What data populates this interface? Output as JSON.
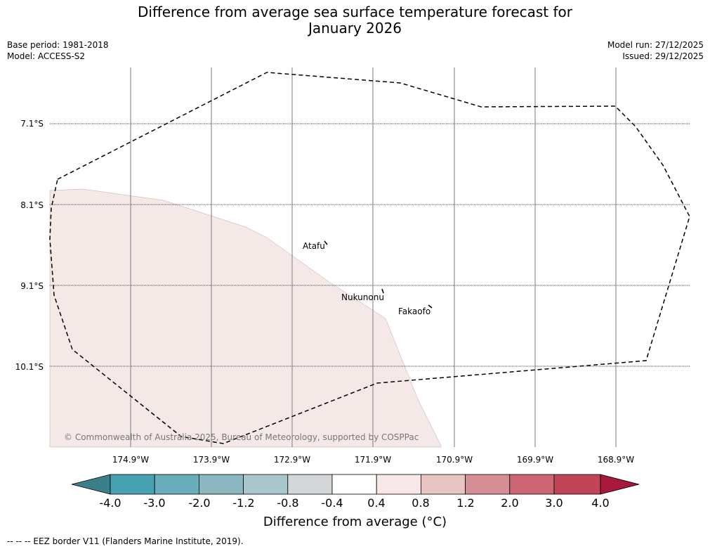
{
  "header": {
    "title_line1": "Difference from average sea surface temperature forecast for",
    "title_line2": "January 2026",
    "base_period": "Base period: 1981-2018",
    "model": "Model: ACCESS-S2",
    "model_run": "Model run: 27/12/2025",
    "issued": "Issued: 29/12/2025"
  },
  "map": {
    "latitude_labels": [
      "7.1°S",
      "8.1°S",
      "9.1°S",
      "10.1°S"
    ],
    "longitude_labels": [
      "174.9°W",
      "173.9°W",
      "172.9°W",
      "171.9°W",
      "170.9°W",
      "169.9°W",
      "168.9°W"
    ],
    "places": [
      "Atafu",
      "Nukunonu",
      "Fakaofo"
    ],
    "copyright": "© Commonwealth of Australia 2025, Bureau of Meteorology, supported by COSPPac",
    "colors": {
      "anomaly_region": "#f5e9e8",
      "eez_border": "#000000"
    }
  },
  "colorbar": {
    "tick_labels": [
      "-4.0",
      "-3.0",
      "-2.0",
      "-1.2",
      "-0.8",
      "-0.4",
      "0.4",
      "0.8",
      "1.2",
      "2.0",
      "3.0",
      "4.0"
    ],
    "colors": [
      "#3b7f8a",
      "#46a2b3",
      "#6aadbc",
      "#8bb7c1",
      "#a8c7cc",
      "#d3d7d9",
      "#ffffff",
      "#f7e8e7",
      "#e8c5c3",
      "#d68e95",
      "#cc6672",
      "#c24457",
      "#a6193a"
    ],
    "label": "Difference from average (°C)"
  },
  "footer": {
    "legend": "--  --  -- EEZ border V11 (Flanders Marine Institute, 2019)."
  }
}
